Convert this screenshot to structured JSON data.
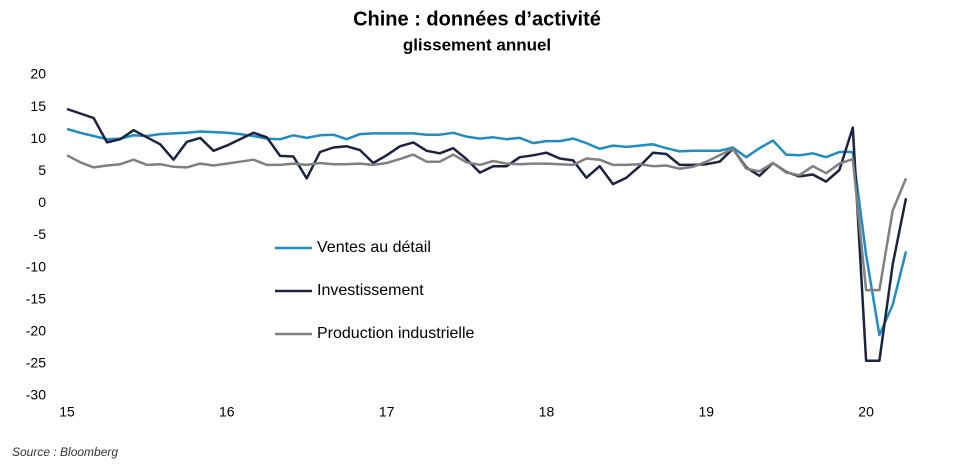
{
  "chart_data": {
    "type": "line",
    "title": "Chine : données d’activité",
    "subtitle": "glissement annuel",
    "source": "Source : Bloomberg",
    "x": [
      15,
      15.0833,
      15.1667,
      15.25,
      15.3333,
      15.4167,
      15.5,
      15.5833,
      15.6667,
      15.75,
      15.8333,
      15.9167,
      16,
      16.0833,
      16.1667,
      16.25,
      16.3333,
      16.4167,
      16.5,
      16.5833,
      16.6667,
      16.75,
      16.8333,
      16.9167,
      17,
      17.0833,
      17.1667,
      17.25,
      17.3333,
      17.4167,
      17.5,
      17.5833,
      17.6667,
      17.75,
      17.8333,
      17.9167,
      18,
      18.0833,
      18.1667,
      18.25,
      18.3333,
      18.4167,
      18.5,
      18.5833,
      18.6667,
      18.75,
      18.8333,
      18.9167,
      19,
      19.0833,
      19.1667,
      19.25,
      19.3333,
      19.4167,
      19.5,
      19.5833,
      19.6667,
      19.75,
      19.8333,
      19.9167,
      20,
      20.0833,
      20.1667,
      20.25
    ],
    "series": [
      {
        "name": "Ventes au détail",
        "color": "#1f8dc1",
        "values": [
          11.6,
          11.0,
          10.5,
          10.0,
          10.1,
          10.6,
          10.5,
          10.8,
          10.9,
          11.0,
          11.2,
          11.1,
          11.0,
          10.8,
          10.5,
          10.1,
          10.0,
          10.6,
          10.2,
          10.6,
          10.7,
          10.0,
          10.8,
          10.9,
          10.9,
          10.9,
          10.9,
          10.7,
          10.7,
          11.0,
          10.4,
          10.1,
          10.3,
          10.0,
          10.2,
          9.4,
          9.7,
          9.7,
          10.1,
          9.4,
          8.5,
          9.0,
          8.8,
          9.0,
          9.2,
          8.6,
          8.1,
          8.2,
          8.2,
          8.2,
          8.7,
          7.2,
          8.6,
          9.8,
          7.6,
          7.5,
          7.8,
          7.2,
          8.0,
          8.0,
          -8.0,
          -20.5,
          -15.8,
          -7.5
        ]
      },
      {
        "name": "Investissement",
        "color": "#1c2240",
        "values": [
          14.7,
          14.0,
          13.3,
          9.5,
          10.0,
          11.4,
          10.3,
          9.2,
          6.8,
          9.6,
          10.2,
          8.2,
          9.0,
          10.0,
          11.0,
          10.3,
          7.4,
          7.3,
          3.9,
          8.0,
          8.7,
          8.9,
          8.3,
          6.3,
          7.5,
          8.9,
          9.5,
          8.2,
          7.8,
          8.6,
          6.9,
          4.8,
          5.8,
          5.8,
          7.2,
          7.5,
          7.9,
          7.0,
          6.7,
          4.0,
          5.8,
          3.0,
          4.0,
          5.8,
          7.9,
          7.7,
          6.0,
          6.0,
          6.1,
          6.5,
          8.5,
          5.6,
          4.3,
          6.3,
          4.9,
          4.2,
          4.5,
          3.4,
          5.2,
          11.8,
          -24.5,
          -24.5,
          -9.5,
          0.8
        ]
      },
      {
        "name": "Production industrielle",
        "color": "#808080",
        "values": [
          7.5,
          6.4,
          5.6,
          5.9,
          6.1,
          6.8,
          6.0,
          6.1,
          5.7,
          5.6,
          6.2,
          5.9,
          6.2,
          6.5,
          6.8,
          6.0,
          6.0,
          6.2,
          6.0,
          6.3,
          6.1,
          6.1,
          6.2,
          6.0,
          6.3,
          6.9,
          7.6,
          6.5,
          6.5,
          7.6,
          6.4,
          6.0,
          6.6,
          6.2,
          6.1,
          6.2,
          6.2,
          6.1,
          6.0,
          7.0,
          6.8,
          6.0,
          6.0,
          6.1,
          5.8,
          5.9,
          5.4,
          5.7,
          6.5,
          7.5,
          8.5,
          5.4,
          5.0,
          6.3,
          4.8,
          4.4,
          5.8,
          4.7,
          6.2,
          6.9,
          -13.5,
          -13.5,
          -1.1,
          3.9
        ]
      }
    ],
    "xlim": [
      15,
      20.45
    ],
    "xticks": [
      15,
      16,
      17,
      18,
      19,
      20
    ],
    "ylim": [
      -30,
      20
    ],
    "yticks": [
      -30,
      -25,
      -20,
      -15,
      -10,
      -5,
      0,
      5,
      10,
      15,
      20
    ],
    "grid": false,
    "legend": "center-left"
  }
}
